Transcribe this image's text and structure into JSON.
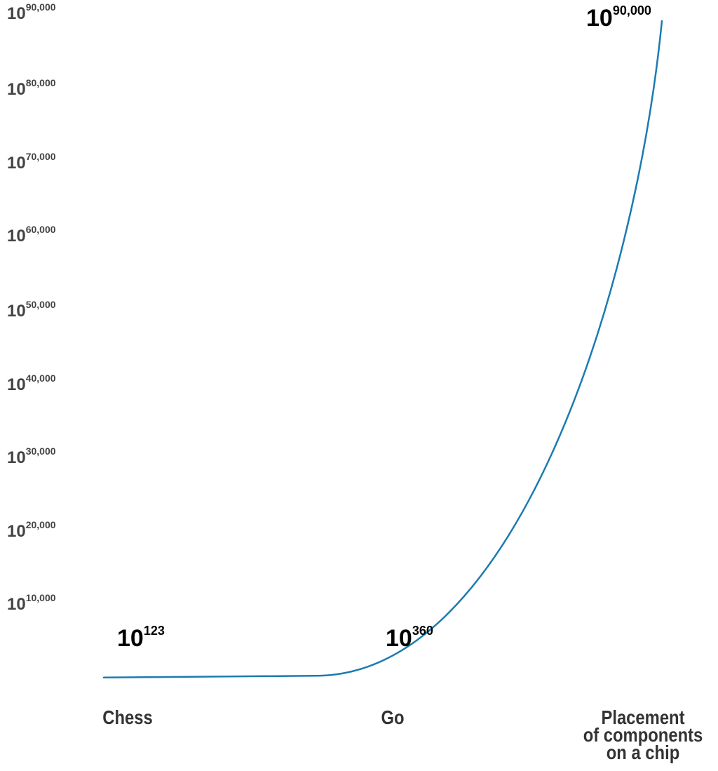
{
  "chart_data": {
    "type": "line",
    "title": "",
    "xlabel": "",
    "ylabel": "",
    "categories": [
      "Chess",
      "Go",
      "Placement\nof components\non a chip"
    ],
    "x_tick_labels": [
      "Chess",
      "Go",
      "Placement of components on a chip"
    ],
    "y_tick_labels": [
      {
        "base": "10",
        "exp": "90,000"
      },
      {
        "base": "10",
        "exp": "80,000"
      },
      {
        "base": "10",
        "exp": "70,000"
      },
      {
        "base": "10",
        "exp": "60,000"
      },
      {
        "base": "10",
        "exp": "50,000"
      },
      {
        "base": "10",
        "exp": "40,000"
      },
      {
        "base": "10",
        "exp": "30,000"
      },
      {
        "base": "10",
        "exp": "20,000"
      },
      {
        "base": "10",
        "exp": "10,000"
      }
    ],
    "series": [
      {
        "values_exponent": [
          123,
          360,
          90000
        ],
        "data_labels": [
          {
            "base": "10",
            "exp": "123"
          },
          {
            "base": "10",
            "exp": "360"
          },
          {
            "base": "10",
            "exp": "90,000"
          }
        ]
      }
    ],
    "y_axis_scale": "log10",
    "ylim_exponent": [
      0,
      90000
    ],
    "grid": false,
    "legend": "none",
    "line_color": "#1b7bb1"
  }
}
